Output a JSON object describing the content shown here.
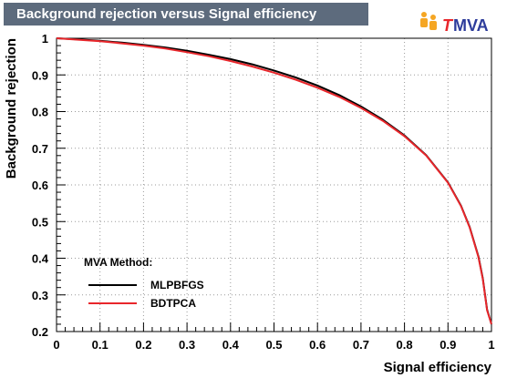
{
  "title": "Background rejection versus Signal efficiency",
  "logo": {
    "t": "T",
    "rest": "MVA",
    "icon": "tmva-people-icon",
    "color_t": "#e8262b",
    "color_rest": "#2d3c9b",
    "color_icon": "#f5a623"
  },
  "chart_data": {
    "type": "line",
    "title": "Background rejection versus Signal efficiency",
    "xlabel": "Signal efficiency",
    "ylabel": "Background rejection",
    "xlim": [
      0,
      1
    ],
    "ylim": [
      0.2,
      1
    ],
    "x_ticks": [
      "0",
      "0.1",
      "0.2",
      "0.3",
      "0.4",
      "0.5",
      "0.6",
      "0.7",
      "0.8",
      "0.9",
      "1"
    ],
    "y_ticks": [
      "0.2",
      "0.3",
      "0.4",
      "0.5",
      "0.6",
      "0.7",
      "0.8",
      "0.9",
      "1"
    ],
    "grid": true,
    "legend": {
      "title": "MVA Method:",
      "position": "bottom-left"
    },
    "series": [
      {
        "name": "MLPBFGS",
        "color": "#000000",
        "x": [
          0,
          0.05,
          0.1,
          0.15,
          0.2,
          0.25,
          0.3,
          0.35,
          0.4,
          0.45,
          0.5,
          0.55,
          0.6,
          0.65,
          0.7,
          0.75,
          0.8,
          0.85,
          0.9,
          0.93,
          0.95,
          0.97,
          0.98,
          0.99,
          1.0
        ],
        "y": [
          1.0,
          0.997,
          0.993,
          0.988,
          0.982,
          0.975,
          0.966,
          0.955,
          0.943,
          0.929,
          0.912,
          0.893,
          0.871,
          0.845,
          0.814,
          0.778,
          0.735,
          0.681,
          0.607,
          0.543,
          0.485,
          0.405,
          0.345,
          0.26,
          0.22
        ]
      },
      {
        "name": "BDTPCA",
        "color": "#e8262b",
        "x": [
          0,
          0.05,
          0.1,
          0.15,
          0.2,
          0.25,
          0.3,
          0.35,
          0.4,
          0.45,
          0.5,
          0.55,
          0.6,
          0.65,
          0.7,
          0.75,
          0.8,
          0.85,
          0.9,
          0.93,
          0.95,
          0.97,
          0.98,
          0.99,
          1.0
        ],
        "y": [
          1.0,
          0.996,
          0.992,
          0.986,
          0.98,
          0.972,
          0.962,
          0.951,
          0.938,
          0.923,
          0.906,
          0.887,
          0.865,
          0.84,
          0.81,
          0.775,
          0.733,
          0.68,
          0.606,
          0.542,
          0.484,
          0.403,
          0.343,
          0.258,
          0.22
        ]
      }
    ]
  }
}
